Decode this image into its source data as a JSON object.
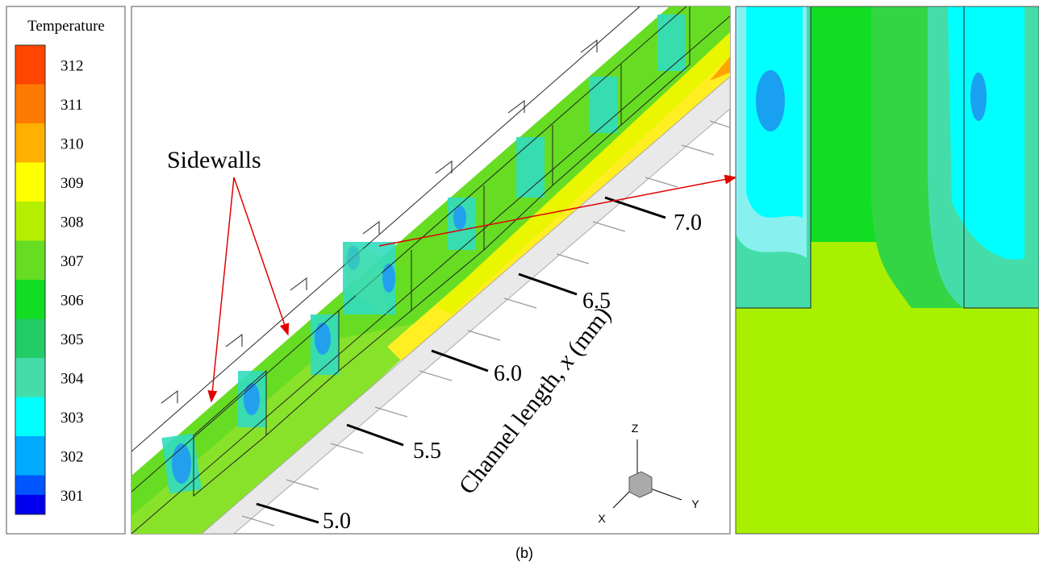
{
  "legend": {
    "title": "Temperature",
    "levels": [
      312,
      311,
      310,
      309,
      308,
      307,
      306,
      305,
      304,
      303,
      302,
      301
    ],
    "colors": [
      "#ff4500",
      "#ff7a00",
      "#ffb000",
      "#ffff00",
      "#b4ee00",
      "#66dd22",
      "#11dd22",
      "#22cc66",
      "#44ddaa",
      "#00ffff",
      "#00aaff",
      "#0055ff"
    ],
    "bottom_color": "#0000ee"
  },
  "annotation": "Sidewalls",
  "axis": {
    "title_text": "Channel length, ",
    "title_var": "x",
    "title_unit": " (mm)",
    "ticks": [
      "5.0",
      "5.5",
      "6.0",
      "6.5",
      "7.0"
    ]
  },
  "triad": {
    "x": "X",
    "y": "Y",
    "z": "Z"
  },
  "caption": "(b)"
}
